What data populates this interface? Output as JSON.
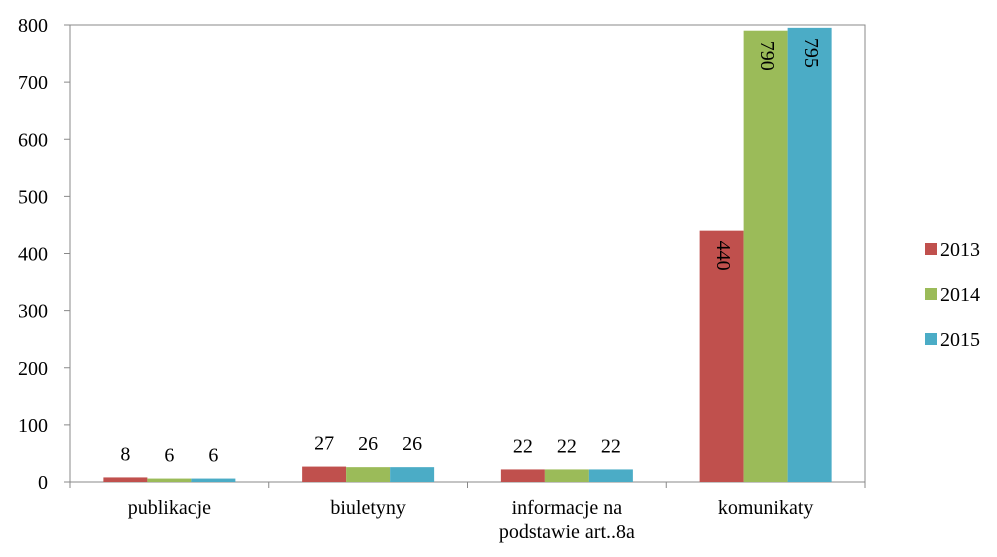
{
  "chart_data": {
    "type": "bar",
    "categories": [
      "publikacje",
      "biuletyny",
      "informacje na podstawie art..8a",
      "komunikaty"
    ],
    "series": [
      {
        "name": "2013",
        "color": "#c0504d",
        "values": [
          8,
          27,
          22,
          440
        ]
      },
      {
        "name": "2014",
        "color": "#9bbb59",
        "values": [
          6,
          26,
          22,
          790
        ]
      },
      {
        "name": "2015",
        "color": "#4bacc6",
        "values": [
          6,
          26,
          22,
          795
        ]
      }
    ],
    "ylim": [
      0,
      800
    ],
    "yticks": [
      0,
      100,
      200,
      300,
      400,
      500,
      600,
      700,
      800
    ],
    "legend": "right",
    "grid": false
  }
}
